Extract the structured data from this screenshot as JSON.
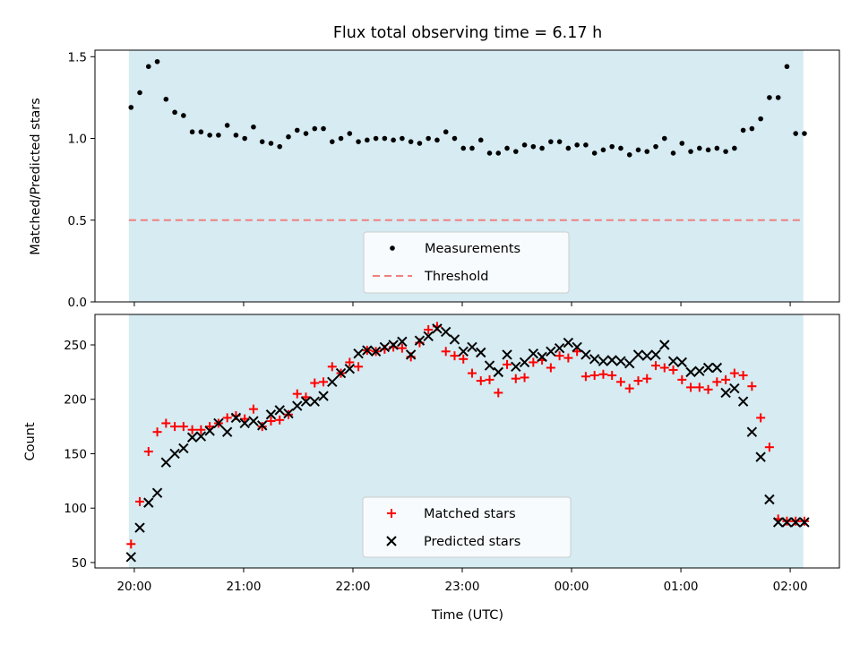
{
  "chart_data": [
    {
      "type": "scatter",
      "title": "Flux total observing time = 6.17 h",
      "xlabel": "",
      "ylabel": "Matched/Predicted stars",
      "ylim": [
        0,
        1.54
      ],
      "yticks": [
        "0.0",
        "0.5",
        "1.0",
        "1.5"
      ],
      "ytick_values": [
        0,
        0.5,
        1.0,
        1.5
      ],
      "x_unit": "hours from 20:00 UTC",
      "xlim": [
        -0.36,
        6.45
      ],
      "observing_window": [
        -0.05,
        6.12
      ],
      "threshold": 0.5,
      "legend": {
        "placement": "lower-center",
        "entries": [
          "Measurements",
          "Threshold"
        ]
      },
      "series": [
        {
          "name": "Measurements",
          "color": "#000000",
          "x": [
            -0.03,
            0.05,
            0.13,
            0.21,
            0.29,
            0.37,
            0.45,
            0.53,
            0.61,
            0.69,
            0.77,
            0.85,
            0.93,
            1.01,
            1.09,
            1.17,
            1.25,
            1.33,
            1.41,
            1.49,
            1.57,
            1.65,
            1.73,
            1.81,
            1.89,
            1.97,
            2.05,
            2.13,
            2.21,
            2.29,
            2.37,
            2.45,
            2.53,
            2.61,
            2.69,
            2.77,
            2.85,
            2.93,
            3.01,
            3.09,
            3.17,
            3.25,
            3.33,
            3.41,
            3.49,
            3.57,
            3.65,
            3.73,
            3.81,
            3.89,
            3.97,
            4.05,
            4.13,
            4.21,
            4.29,
            4.37,
            4.45,
            4.53,
            4.61,
            4.69,
            4.77,
            4.85,
            4.93,
            5.01,
            5.09,
            5.17,
            5.25,
            5.33,
            5.41,
            5.49,
            5.57,
            5.65,
            5.73,
            5.81,
            5.89,
            5.97,
            6.05,
            6.13
          ],
          "y": [
            1.19,
            1.28,
            1.44,
            1.47,
            1.24,
            1.16,
            1.14,
            1.04,
            1.04,
            1.02,
            1.02,
            1.08,
            1.02,
            1.0,
            1.07,
            0.98,
            0.97,
            0.95,
            1.01,
            1.05,
            1.03,
            1.06,
            1.06,
            0.98,
            1.0,
            1.03,
            0.98,
            0.99,
            1.0,
            1.0,
            0.99,
            1.0,
            0.98,
            0.97,
            1.0,
            0.99,
            1.04,
            1.0,
            0.94,
            0.94,
            0.99,
            0.91,
            0.91,
            0.94,
            0.92,
            0.96,
            0.95,
            0.94,
            0.98,
            0.98,
            0.94,
            0.96,
            0.96,
            0.91,
            0.93,
            0.95,
            0.94,
            0.9,
            0.93,
            0.92,
            0.95,
            1.0,
            0.91,
            0.97,
            0.92,
            0.94,
            0.93,
            0.94,
            0.92,
            0.94,
            1.05,
            1.06,
            1.12,
            1.25,
            1.25,
            1.44,
            1.03,
            1.03
          ]
        }
      ]
    },
    {
      "type": "scatter",
      "title": "",
      "xlabel": "Time (UTC)",
      "ylabel": "Count",
      "ylim": [
        45,
        278
      ],
      "yticks": [
        "50",
        "100",
        "150",
        "200",
        "250"
      ],
      "ytick_values": [
        50,
        100,
        150,
        200,
        250
      ],
      "x_unit": "hours from 20:00 UTC",
      "xlim": [
        -0.36,
        6.45
      ],
      "xticks": [
        "20:00",
        "21:00",
        "22:00",
        "23:00",
        "00:00",
        "01:00",
        "02:00"
      ],
      "xtick_values": [
        0,
        1,
        2,
        3,
        4,
        5,
        6
      ],
      "observing_window": [
        -0.05,
        6.12
      ],
      "legend": {
        "placement": "lower-center",
        "entries": [
          "Matched stars",
          "Predicted stars"
        ]
      },
      "series": [
        {
          "name": "Matched stars",
          "color": "#ff0000",
          "marker": "plus",
          "x": [
            -0.03,
            0.05,
            0.13,
            0.21,
            0.29,
            0.37,
            0.45,
            0.53,
            0.61,
            0.69,
            0.77,
            0.85,
            0.93,
            1.01,
            1.09,
            1.17,
            1.25,
            1.33,
            1.41,
            1.49,
            1.57,
            1.65,
            1.73,
            1.81,
            1.89,
            1.97,
            2.05,
            2.13,
            2.21,
            2.29,
            2.37,
            2.45,
            2.53,
            2.61,
            2.69,
            2.77,
            2.85,
            2.93,
            3.01,
            3.09,
            3.17,
            3.25,
            3.33,
            3.41,
            3.49,
            3.57,
            3.65,
            3.73,
            3.81,
            3.89,
            3.97,
            4.05,
            4.13,
            4.21,
            4.29,
            4.37,
            4.45,
            4.53,
            4.61,
            4.69,
            4.77,
            4.85,
            4.93,
            5.01,
            5.09,
            5.17,
            5.25,
            5.33,
            5.41,
            5.49,
            5.57,
            5.65,
            5.73,
            5.81,
            5.89,
            5.97,
            6.05,
            6.13
          ],
          "y": [
            67,
            106,
            152,
            170,
            178,
            175,
            175,
            172,
            172,
            175,
            178,
            183,
            185,
            182,
            191,
            175,
            180,
            181,
            186,
            205,
            202,
            215,
            216,
            230,
            224,
            234,
            230,
            245,
            244,
            246,
            248,
            247,
            239,
            252,
            264,
            267,
            244,
            240,
            237,
            224,
            217,
            218,
            206,
            232,
            219,
            220,
            234,
            236,
            229,
            240,
            238,
            244,
            221,
            222,
            223,
            222,
            216,
            210,
            217,
            219,
            231,
            229,
            227,
            218,
            211,
            211,
            209,
            216,
            218,
            224,
            222,
            212,
            183,
            156,
            90,
            88,
            88,
            88
          ]
        },
        {
          "name": "Predicted stars",
          "color": "#000000",
          "marker": "x",
          "x": [
            -0.03,
            0.05,
            0.13,
            0.21,
            0.29,
            0.37,
            0.45,
            0.53,
            0.61,
            0.69,
            0.77,
            0.85,
            0.93,
            1.01,
            1.09,
            1.17,
            1.25,
            1.33,
            1.41,
            1.49,
            1.57,
            1.65,
            1.73,
            1.81,
            1.89,
            1.97,
            2.05,
            2.13,
            2.21,
            2.29,
            2.37,
            2.45,
            2.53,
            2.61,
            2.69,
            2.77,
            2.85,
            2.93,
            3.01,
            3.09,
            3.17,
            3.25,
            3.33,
            3.41,
            3.49,
            3.57,
            3.65,
            3.73,
            3.81,
            3.89,
            3.97,
            4.05,
            4.13,
            4.21,
            4.29,
            4.37,
            4.45,
            4.53,
            4.61,
            4.69,
            4.77,
            4.85,
            4.93,
            5.01,
            5.09,
            5.17,
            5.25,
            5.33,
            5.41,
            5.49,
            5.57,
            5.65,
            5.73,
            5.81,
            5.89,
            5.97,
            6.05,
            6.13
          ],
          "y": [
            55,
            82,
            105,
            114,
            142,
            150,
            155,
            165,
            166,
            171,
            178,
            170,
            183,
            178,
            180,
            176,
            186,
            190,
            187,
            194,
            198,
            198,
            203,
            216,
            224,
            228,
            242,
            245,
            244,
            248,
            250,
            253,
            241,
            254,
            258,
            265,
            262,
            255,
            244,
            248,
            243,
            231,
            225,
            241,
            230,
            234,
            242,
            239,
            244,
            247,
            252,
            248,
            241,
            237,
            235,
            236,
            235,
            233,
            241,
            240,
            241,
            250,
            235,
            234,
            225,
            226,
            229,
            229,
            206,
            210,
            198,
            170,
            147,
            108,
            87,
            87,
            87,
            87
          ]
        }
      ]
    }
  ]
}
